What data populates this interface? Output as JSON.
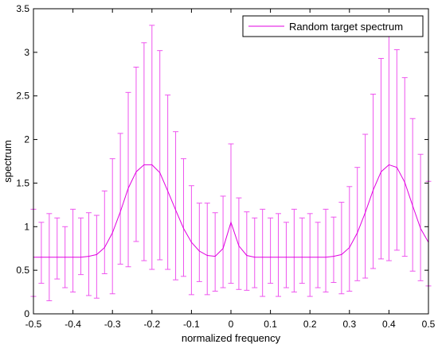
{
  "chart_data": {
    "type": "line",
    "title": "",
    "xlabel": "normalized frequency",
    "ylabel": "spectrum",
    "xlim": [
      -0.5,
      0.5
    ],
    "ylim": [
      0,
      3.5
    ],
    "xticks": [
      "-0.5",
      "-0.4",
      "-0.3",
      "-0.2",
      "-0.1",
      "0",
      "0.1",
      "0.2",
      "0.3",
      "0.4",
      "0.5"
    ],
    "yticks": [
      "0",
      "0.5",
      "1",
      "1.5",
      "2",
      "2.5",
      "3",
      "3.5"
    ],
    "grid": false,
    "legend_position": "top-right",
    "series_color": "#e000e0",
    "errorbar_color": "#ee55ee",
    "series": [
      {
        "name": "Random target spectrum",
        "x": [
          -0.5,
          -0.48,
          -0.46,
          -0.44,
          -0.42,
          -0.4,
          -0.38,
          -0.36,
          -0.34,
          -0.32,
          -0.3,
          -0.28,
          -0.26,
          -0.24,
          -0.22,
          -0.2,
          -0.18,
          -0.16,
          -0.14,
          -0.12,
          -0.1,
          -0.08,
          -0.06,
          -0.04,
          -0.02,
          0,
          0.02,
          0.04,
          0.06,
          0.08,
          0.1,
          0.12,
          0.14,
          0.16,
          0.18,
          0.2,
          0.22,
          0.24,
          0.26,
          0.28,
          0.3,
          0.32,
          0.34,
          0.36,
          0.38,
          0.4,
          0.42,
          0.44,
          0.46,
          0.48,
          0.5
        ],
        "values": [
          0.65,
          0.65,
          0.65,
          0.65,
          0.65,
          0.65,
          0.65,
          0.66,
          0.68,
          0.76,
          0.93,
          1.17,
          1.44,
          1.63,
          1.71,
          1.71,
          1.62,
          1.41,
          1.19,
          0.98,
          0.82,
          0.72,
          0.67,
          0.66,
          0.75,
          1.05,
          0.78,
          0.67,
          0.65,
          0.65,
          0.65,
          0.65,
          0.65,
          0.65,
          0.65,
          0.65,
          0.65,
          0.65,
          0.66,
          0.68,
          0.76,
          0.93,
          1.16,
          1.42,
          1.63,
          1.71,
          1.68,
          1.51,
          1.24,
          0.98,
          0.82
        ],
        "errors_low": [
          0.45,
          0.3,
          0.5,
          0.25,
          0.35,
          0.4,
          0.2,
          0.45,
          0.5,
          0.3,
          0.7,
          0.6,
          0.9,
          0.8,
          1.1,
          1.2,
          1.0,
          0.9,
          0.8,
          0.55,
          0.6,
          0.35,
          0.45,
          0.4,
          0.45,
          0.7,
          0.5,
          0.4,
          0.35,
          0.45,
          0.3,
          0.45,
          0.35,
          0.4,
          0.3,
          0.45,
          0.35,
          0.4,
          0.3,
          0.45,
          0.5,
          0.55,
          0.75,
          0.9,
          1.0,
          1.1,
          0.95,
          0.85,
          0.75,
          0.6,
          0.5
        ],
        "errors_high": [
          0.55,
          0.4,
          0.5,
          0.45,
          0.35,
          0.55,
          0.45,
          0.5,
          0.45,
          0.65,
          0.85,
          0.9,
          1.1,
          1.2,
          1.4,
          1.6,
          1.4,
          1.1,
          0.9,
          0.8,
          0.65,
          0.55,
          0.6,
          0.5,
          0.6,
          0.9,
          0.55,
          0.5,
          0.45,
          0.55,
          0.45,
          0.5,
          0.4,
          0.55,
          0.45,
          0.5,
          0.4,
          0.55,
          0.45,
          0.6,
          0.7,
          0.75,
          0.9,
          1.1,
          1.3,
          1.5,
          1.35,
          1.2,
          1.0,
          0.85,
          0.7
        ]
      }
    ]
  }
}
